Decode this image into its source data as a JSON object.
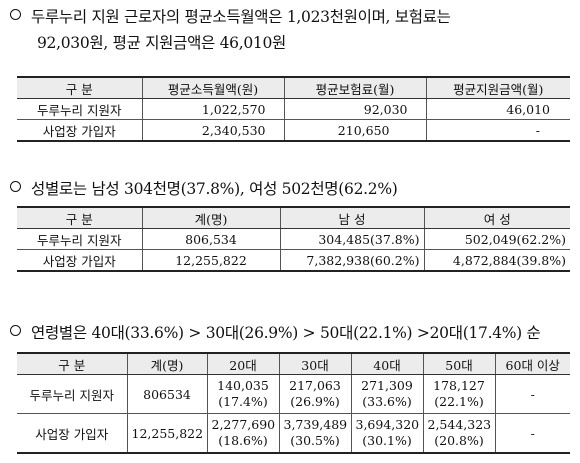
{
  "section1": {
    "heading_line1": "두루누리 지원 근로자의 평균소득월액은 1,023천원이며, 보험료는",
    "heading_line2": "92,030원, 평균 지원금액은 46,010원",
    "headers": [
      "구 분",
      "평균소득월액(원)",
      "평균보험료(월)",
      "평균지원금액(월)"
    ],
    "rows": [
      {
        "label": "두루누리 지원자",
        "income": "1,022,570",
        "premium": "92,030",
        "support": "46,010"
      },
      {
        "label": "사업장 가입자",
        "income": "2,340,530",
        "premium": "210,650",
        "support": "-"
      }
    ]
  },
  "section2": {
    "heading": "성별로는 남성 304천명(37.8%), 여성 502천명(62.2%)",
    "headers": [
      "구 분",
      "계(명)",
      "남 성",
      "여 성"
    ],
    "rows": [
      {
        "label": "두루누리 지원자",
        "total": "806,534",
        "male": "304,485(37.8%)",
        "female": "502,049(62.2%)"
      },
      {
        "label": "사업장 가입자",
        "total": "12,255,822",
        "male": "7,382,938(60.2%)",
        "female": "4,872,884(39.8%)"
      }
    ]
  },
  "section3": {
    "heading": "연령별은 40대(33.6%) > 30대(26.9%) > 50대(22.1%) >20대(17.4%) 순",
    "headers": [
      "구 분",
      "계(명)",
      "20대",
      "30대",
      "40대",
      "50대",
      "60대 이상"
    ],
    "rows": [
      {
        "label": "두루누리 지원자",
        "total": "806534",
        "age20": [
          "140,035",
          "(17.4%)"
        ],
        "age30": [
          "217,063",
          "(26.9%)"
        ],
        "age40": [
          "271,309",
          "(33.6%)"
        ],
        "age50": [
          "178,127",
          "(22.1%)"
        ],
        "age60": "-"
      },
      {
        "label": "사업장 가입자",
        "total": "12,255,822",
        "age20": [
          "2,277,690",
          "(18.6%)"
        ],
        "age30": [
          "3,739,489",
          "(30.5%)"
        ],
        "age40": [
          "3,694,320",
          "(30.1%)"
        ],
        "age50": [
          "2,544,323",
          "(20.8%)"
        ],
        "age60": "-"
      }
    ]
  }
}
